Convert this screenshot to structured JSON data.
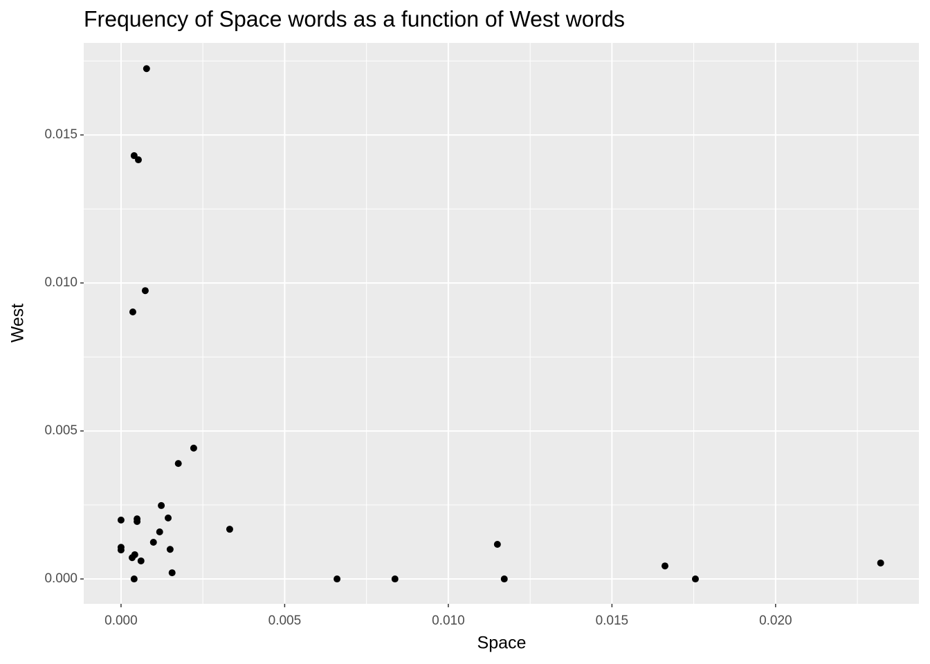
{
  "chart_data": {
    "type": "scatter",
    "title": "Frequency of Space words as a function of West words",
    "x_label": "Space",
    "y_label": "West",
    "color": "#000000",
    "grid": true,
    "xlim": [
      -0.00114,
      0.02438
    ],
    "ylim": [
      -0.00084,
      0.01811
    ],
    "xticks": [
      {
        "value": 0,
        "label": "0.000"
      },
      {
        "value": 0.005,
        "label": "0.005"
      },
      {
        "value": 0.01,
        "label": "0.010"
      },
      {
        "value": 0.015,
        "label": "0.015"
      },
      {
        "value": 0.02,
        "label": "0.020"
      }
    ],
    "yticks": [
      {
        "value": 0,
        "label": "0.000"
      },
      {
        "value": 0.005,
        "label": "0.005"
      },
      {
        "value": 0.01,
        "label": "0.010"
      },
      {
        "value": 0.015,
        "label": "0.015"
      }
    ],
    "x": [
      0.00078,
      0.0004,
      0.00053,
      0.00074,
      0.00036,
      0.00222,
      0.00175,
      0.00123,
      0,
      0.00049,
      0.00049,
      0.00144,
      0.00332,
      0.00118,
      0.00099,
      0,
      0,
      0.0015,
      0.00042,
      0.00034,
      0.00061,
      0.00156,
      0.0004,
      0.0066,
      0.00837,
      0.0115,
      0.01171,
      0.01662,
      0.01755,
      0.02321
    ],
    "values": [
      0.01724,
      0.0143,
      0.01416,
      0.00974,
      0.00902,
      0.00442,
      0.0039,
      0.00248,
      0.00199,
      0.00203,
      0.00194,
      0.00206,
      0.00168,
      0.00159,
      0.00124,
      0.00107,
      0.00098,
      0.001,
      0.00082,
      0.00072,
      0.00061,
      0.00021,
      0,
      0,
      0,
      0.00117,
      0,
      0.00044,
      0,
      0.00054
    ]
  }
}
